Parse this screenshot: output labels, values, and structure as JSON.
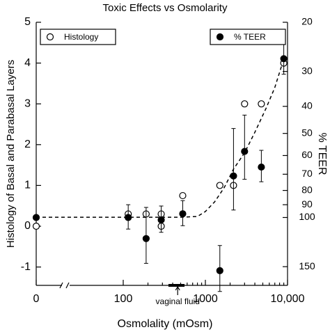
{
  "chart_data": {
    "type": "scatter",
    "title": "Toxic Effects vs Osmolarity",
    "xlabel": "Osmolality (mOsm)",
    "ylabel": "Histology of Basal and Parabasal Layers",
    "y2label": "% TEER",
    "xlog": true,
    "xlim": [
      0,
      10000
    ],
    "xticks": [
      0,
      100,
      1000,
      {
        "value": 10000,
        "label": "10,000"
      }
    ],
    "ylim": [
      -1.45,
      5
    ],
    "yticks": [
      -1,
      0,
      1,
      2,
      3,
      4,
      5
    ],
    "y2log": true,
    "y2lim": [
      175,
      20
    ],
    "y2ticks": [
      20,
      30,
      40,
      50,
      60,
      70,
      80,
      90,
      100,
      150
    ],
    "series": [
      {
        "name": "Histology",
        "marker": "open",
        "color": "#000000",
        "legend": "upper left",
        "x": [
          0,
          115,
          190,
          290,
          290,
          530,
          1500,
          2200,
          3000,
          4800,
          9000
        ],
        "values": [
          0,
          0.3,
          0.3,
          0.3,
          0,
          0.75,
          1,
          1,
          3,
          3,
          4
        ]
      },
      {
        "name": "% TEER",
        "marker": "filled",
        "color": "#000000",
        "legend": "upper right",
        "axis": "y2",
        "x": [
          0,
          115,
          190,
          290,
          530,
          1500,
          2200,
          3000,
          4800,
          9000
        ],
        "values": [
          100,
          100,
          119,
          102,
          97,
          155,
          71,
          58,
          66,
          27
        ],
        "errors": [
          null,
          10,
          27,
          11,
          10,
          29,
          23,
          15,
          8.5,
          3.7
        ]
      }
    ],
    "curve": {
      "x": [
        0,
        100,
        500,
        800,
        1000,
        1300,
        1700,
        2200,
        3000,
        4000,
        5500,
        7000,
        9000
      ],
      "values": [
        0.22,
        0.22,
        0.22,
        0.24,
        0.36,
        0.6,
        0.95,
        1.4,
        1.8,
        2.3,
        2.9,
        3.4,
        4.1
      ]
    },
    "annotation": {
      "text": "vaginal fluid",
      "x": 460,
      "range": [
        355,
        557
      ]
    }
  }
}
